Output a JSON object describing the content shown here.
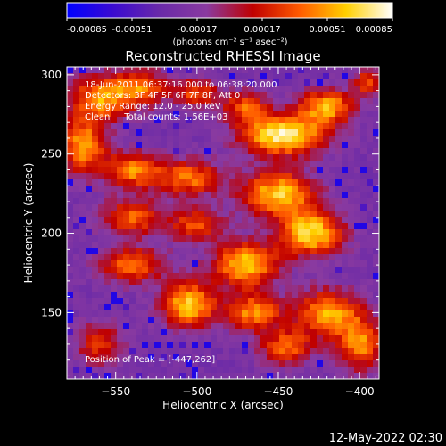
{
  "chart_data": {
    "type": "heatmap",
    "title": "Reconstructed RHESSI Image",
    "xlabel": "Heliocentric X (arcsec)",
    "ylabel": "Heliocentric Y (arcsec)",
    "xlim": [
      -580,
      -388
    ],
    "ylim": [
      108,
      305
    ],
    "x_ticks": [
      -550,
      -500,
      -450,
      -400
    ],
    "y_ticks": [
      150,
      200,
      250,
      300
    ],
    "colorbar": {
      "unit_label": "(photons cm⁻² s⁻¹ asec⁻²)",
      "range": [
        -0.00085,
        0.00085
      ],
      "ticks": [
        "-0.00085",
        "-0.00051",
        "-0.00017",
        "0.00017",
        "0.00051",
        "0.00085"
      ],
      "colors": [
        "#0000ff",
        "#3b0bd0",
        "#6a2aa8",
        "#8a3aa0",
        "#c00000",
        "#ff5a00",
        "#ffd000",
        "#ffffff"
      ]
    },
    "annotations": [
      "18-Jun-2011 06:37:16.000 to 06:38:20.000",
      "Detectors: 3F 4F 5F 6F 7F 8F, Att 0",
      "Energy Range: 12.0 - 25.0 keV",
      "Clean     Total counts: 1.56E+03"
    ],
    "peak_label": "Position of Peak = [-447,262]",
    "peak": {
      "x": -447,
      "y": 262
    },
    "sources": [
      {
        "x": -447,
        "y": 262,
        "sx": 18,
        "sy": 9,
        "amp": 1.0
      },
      {
        "x": -420,
        "y": 280,
        "sx": 12,
        "sy": 8,
        "amp": 0.75
      },
      {
        "x": -560,
        "y": 285,
        "sx": 14,
        "sy": 10,
        "amp": 0.7
      },
      {
        "x": -535,
        "y": 292,
        "sx": 12,
        "sy": 8,
        "amp": 0.6
      },
      {
        "x": -500,
        "y": 288,
        "sx": 10,
        "sy": 7,
        "amp": 0.55
      },
      {
        "x": -470,
        "y": 280,
        "sx": 10,
        "sy": 7,
        "amp": 0.55
      },
      {
        "x": -570,
        "y": 255,
        "sx": 10,
        "sy": 12,
        "amp": 0.75
      },
      {
        "x": -540,
        "y": 240,
        "sx": 12,
        "sy": 8,
        "amp": 0.7
      },
      {
        "x": -505,
        "y": 235,
        "sx": 14,
        "sy": 8,
        "amp": 0.65
      },
      {
        "x": -540,
        "y": 210,
        "sx": 14,
        "sy": 8,
        "amp": 0.6
      },
      {
        "x": -500,
        "y": 205,
        "sx": 12,
        "sy": 8,
        "amp": 0.55
      },
      {
        "x": -450,
        "y": 225,
        "sx": 16,
        "sy": 10,
        "amp": 0.85
      },
      {
        "x": -430,
        "y": 200,
        "sx": 14,
        "sy": 10,
        "amp": 0.9
      },
      {
        "x": -470,
        "y": 180,
        "sx": 14,
        "sy": 10,
        "amp": 0.85
      },
      {
        "x": -540,
        "y": 180,
        "sx": 14,
        "sy": 8,
        "amp": 0.65
      },
      {
        "x": -505,
        "y": 155,
        "sx": 12,
        "sy": 10,
        "amp": 0.85
      },
      {
        "x": -465,
        "y": 150,
        "sx": 12,
        "sy": 8,
        "amp": 0.7
      },
      {
        "x": -420,
        "y": 150,
        "sx": 14,
        "sy": 10,
        "amp": 0.75
      },
      {
        "x": -400,
        "y": 130,
        "sx": 10,
        "sy": 12,
        "amp": 0.7
      },
      {
        "x": -445,
        "y": 128,
        "sx": 12,
        "sy": 8,
        "amp": 0.6
      },
      {
        "x": -560,
        "y": 130,
        "sx": 10,
        "sy": 10,
        "amp": 0.5
      },
      {
        "x": -395,
        "y": 295,
        "sx": 6,
        "sy": 6,
        "amp": 0.55
      }
    ]
  },
  "footer": {
    "timestamp": "12-May-2022 02:30"
  }
}
